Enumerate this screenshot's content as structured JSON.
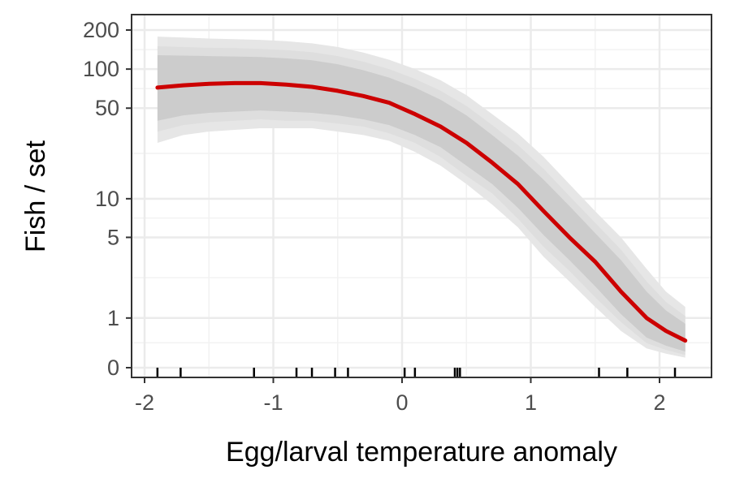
{
  "chart_data": {
    "type": "line",
    "title": "",
    "xlabel": "Egg/larval temperature anomaly",
    "ylabel": "Fish / set",
    "xlim": [
      -2.1,
      2.4
    ],
    "ylim_label": [
      0,
      200
    ],
    "y_scale": "asinh",
    "grid": true,
    "x_ticks": [
      -2,
      -1,
      0,
      1,
      2
    ],
    "x_tick_labels": [
      "-2",
      "-1",
      "0",
      "1",
      "2"
    ],
    "y_ticks": [
      0,
      1,
      5,
      10,
      50,
      100,
      200
    ],
    "y_tick_labels": [
      "0",
      "1",
      "5",
      "10",
      "50",
      "100",
      "200"
    ],
    "series": [
      {
        "color": "#cc0000",
        "x": [
          -1.9,
          -1.7,
          -1.5,
          -1.3,
          -1.1,
          -0.9,
          -0.7,
          -0.5,
          -0.3,
          -0.1,
          0.1,
          0.3,
          0.5,
          0.7,
          0.9,
          1.1,
          1.3,
          1.5,
          1.7,
          1.9,
          2.05,
          2.2
        ],
        "y": [
          72,
          75,
          77,
          78,
          78,
          76,
          73,
          68,
          62,
          55,
          45,
          36,
          27,
          19,
          13,
          8,
          5,
          3.2,
          1.8,
          1.0,
          0.7,
          0.5
        ]
      }
    ],
    "bands": [
      {
        "level": "outer",
        "color": "#e6e6e6",
        "x": [
          -1.9,
          -1.7,
          -1.5,
          -1.3,
          -1.1,
          -0.9,
          -0.7,
          -0.5,
          -0.3,
          -0.1,
          0.1,
          0.3,
          0.5,
          0.7,
          0.9,
          1.1,
          1.3,
          1.5,
          1.7,
          1.9,
          2.05,
          2.2
        ],
        "lower": [
          27,
          31,
          33,
          34,
          35,
          35,
          35,
          33,
          31,
          28,
          23,
          18,
          13,
          9,
          6,
          3.5,
          2.2,
          1.3,
          0.7,
          0.35,
          0.25,
          0.18
        ],
        "upper": [
          178,
          175,
          172,
          170,
          168,
          164,
          158,
          148,
          134,
          118,
          100,
          82,
          63,
          45,
          32,
          21,
          13,
          8,
          5,
          2.8,
          1.8,
          1.3
        ]
      },
      {
        "level": "middle",
        "color": "#dedede",
        "x": [
          -1.9,
          -1.7,
          -1.5,
          -1.3,
          -1.1,
          -0.9,
          -0.7,
          -0.5,
          -0.3,
          -0.1,
          0.1,
          0.3,
          0.5,
          0.7,
          0.9,
          1.1,
          1.3,
          1.5,
          1.7,
          1.9,
          2.05,
          2.2
        ],
        "lower": [
          33,
          37,
          39,
          40,
          41,
          40,
          40,
          38,
          36,
          32,
          27,
          21,
          15,
          11,
          7,
          4.2,
          2.7,
          1.6,
          0.9,
          0.45,
          0.32,
          0.23
        ],
        "upper": [
          150,
          148,
          146,
          145,
          143,
          140,
          135,
          126,
          114,
          100,
          84,
          68,
          52,
          37,
          26,
          17,
          10.5,
          6.5,
          4,
          2.2,
          1.45,
          1.05
        ]
      },
      {
        "level": "inner",
        "color": "#cccccc",
        "x": [
          -1.9,
          -1.7,
          -1.5,
          -1.3,
          -1.1,
          -0.9,
          -0.7,
          -0.5,
          -0.3,
          -0.1,
          0.1,
          0.3,
          0.5,
          0.7,
          0.9,
          1.1,
          1.3,
          1.5,
          1.7,
          1.9,
          2.05,
          2.2
        ],
        "lower": [
          40,
          44,
          46,
          47,
          48,
          47,
          46,
          44,
          41,
          37,
          31,
          25,
          18,
          13,
          8.5,
          5.2,
          3.3,
          2.0,
          1.1,
          0.56,
          0.4,
          0.29
        ],
        "upper": [
          128,
          127,
          126,
          125,
          124,
          121,
          117,
          109,
          98,
          86,
          72,
          58,
          44,
          31,
          21.5,
          14,
          8.8,
          5.4,
          3.3,
          1.8,
          1.2,
          0.86
        ]
      }
    ],
    "rug_x": [
      -1.9,
      -1.72,
      -1.15,
      -0.82,
      -0.7,
      -0.52,
      -0.42,
      0.02,
      0.1,
      0.41,
      0.43,
      0.45,
      1.53,
      1.75,
      2.12
    ]
  }
}
